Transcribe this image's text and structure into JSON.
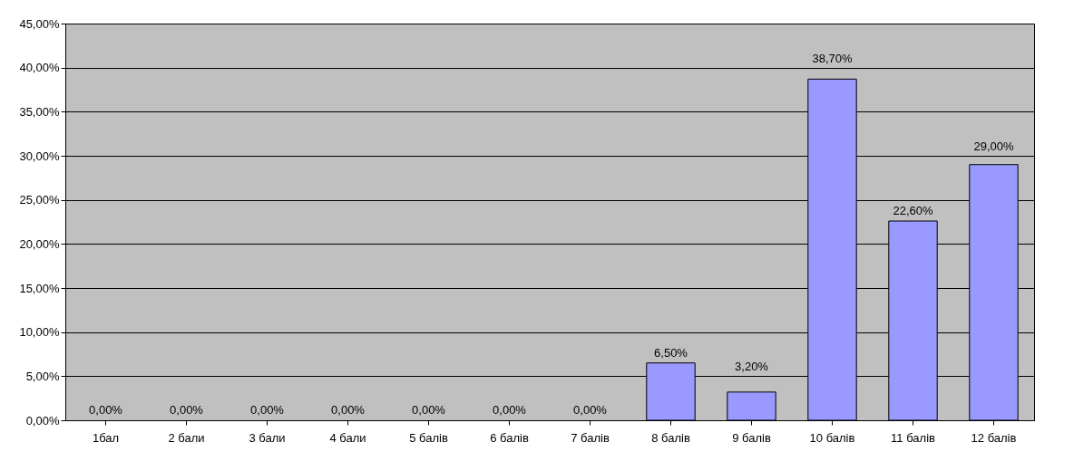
{
  "chart_data": {
    "type": "bar",
    "categories": [
      "1бал",
      "2 бали",
      "3 бали",
      "4 бали",
      "5 балів",
      "6 балів",
      "7 балів",
      "8 балів",
      "9 балів",
      "10 балів",
      "11 балів",
      "12 балів"
    ],
    "values": [
      0,
      0,
      0,
      0,
      0,
      0,
      0,
      6.5,
      3.2,
      38.7,
      22.6,
      29.0
    ],
    "color": "#9999ff",
    "value_labels": [
      "0,00%",
      "0,00%",
      "0,00%",
      "0,00%",
      "0,00%",
      "0,00%",
      "0,00%",
      "6,50%",
      "3,20%",
      "38,70%",
      "22,60%",
      "29,00%"
    ],
    "ylim": [
      0,
      45
    ],
    "yticks": [
      {
        "value": 0,
        "label": "0,00%"
      },
      {
        "value": 5,
        "label": "5,00%"
      },
      {
        "value": 10,
        "label": "10,00%"
      },
      {
        "value": 15,
        "label": "15,00%"
      },
      {
        "value": 20,
        "label": "20,00%"
      },
      {
        "value": 25,
        "label": "25,00%"
      },
      {
        "value": 30,
        "label": "30,00%"
      },
      {
        "value": 35,
        "label": "35,00%"
      },
      {
        "value": 40,
        "label": "40,00%"
      },
      {
        "value": 45,
        "label": "45,00%"
      }
    ],
    "grid": "y",
    "legend": false
  }
}
